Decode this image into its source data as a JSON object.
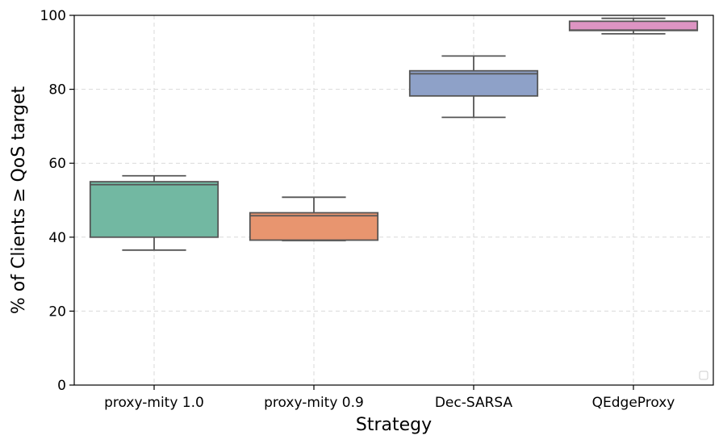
{
  "chart_data": {
    "type": "box",
    "title": "",
    "xlabel": "Strategy",
    "ylabel": "% of Clients ≥ QoS target",
    "ylim": [
      0,
      100
    ],
    "yticks": [
      0,
      20,
      40,
      60,
      80,
      100
    ],
    "grid": true,
    "legend": "empty box at bottom-right",
    "categories": [
      "proxy-mity 1.0",
      "proxy-mity 0.9",
      "Dec-SARSA",
      "QEdgeProxy"
    ],
    "boxes": [
      {
        "name": "proxy-mity 1.0",
        "whisker_low": 36.5,
        "q1": 40.0,
        "median": 54.2,
        "q3": 55.0,
        "whisker_high": 56.6,
        "color": "#72b8a2"
      },
      {
        "name": "proxy-mity 0.9",
        "whisker_low": 39.1,
        "q1": 39.2,
        "median": 45.8,
        "q3": 46.6,
        "whisker_high": 50.8,
        "color": "#e8956f"
      },
      {
        "name": "Dec-SARSA",
        "whisker_low": 72.4,
        "q1": 78.2,
        "median": 84.2,
        "q3": 85.0,
        "whisker_high": 89.0,
        "color": "#8ea1c8"
      },
      {
        "name": "QEdgeProxy",
        "whisker_low": 95.0,
        "q1": 95.9,
        "median": 96.0,
        "q3": 98.4,
        "whisker_high": 99.2,
        "color": "#dd94c3"
      }
    ],
    "colors": {
      "box_edge": "#555555",
      "grid": "#d9d9d9",
      "axis": "#000000"
    }
  }
}
